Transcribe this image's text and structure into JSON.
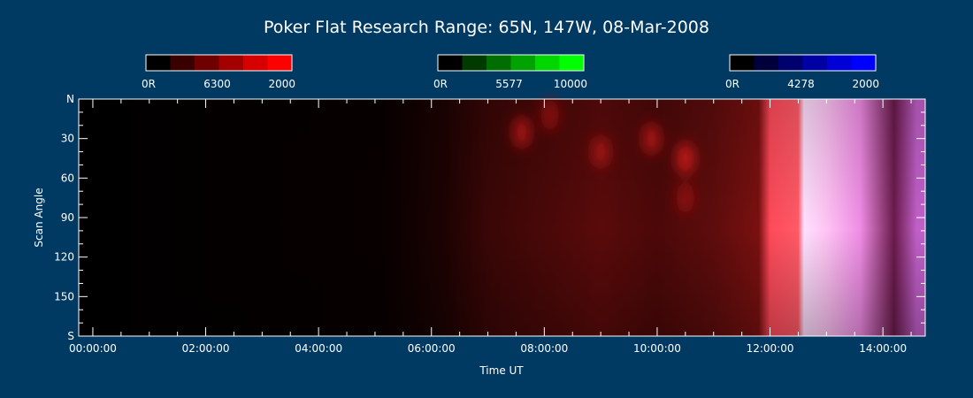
{
  "chart_data": {
    "type": "heatmap",
    "title": "Poker Flat Research Range: 65N, 147W, 08-Mar-2008",
    "xlabel": "Time UT",
    "ylabel": "Scan Angle",
    "x_ticks": [
      "00:00:00",
      "02:00:00",
      "04:00:00",
      "06:00:00",
      "08:00:00",
      "10:00:00",
      "12:00:00",
      "14:00:00"
    ],
    "x_tick_hours": [
      0,
      2,
      4,
      6,
      8,
      10,
      12,
      14
    ],
    "xlim_hours": [
      -0.25,
      14.75
    ],
    "y_ticks": [
      "N",
      "30",
      "60",
      "90",
      "120",
      "150",
      "S"
    ],
    "y_tick_values": [
      0,
      30,
      60,
      90,
      120,
      150,
      180
    ],
    "ylim": [
      0,
      180
    ],
    "colorbars": [
      {
        "wavelength": "6300",
        "min_label": "0R",
        "max_label": "2000",
        "colors": [
          "#000000",
          "#3a0000",
          "#6e0000",
          "#a30000",
          "#d70000",
          "#ff0000"
        ]
      },
      {
        "wavelength": "5577",
        "min_label": "0R",
        "max_label": "10000",
        "colors": [
          "#000000",
          "#003a00",
          "#006e00",
          "#00a300",
          "#00d700",
          "#00ff00"
        ]
      },
      {
        "wavelength": "4278",
        "min_label": "0R",
        "max_label": "2000",
        "colors": [
          "#000000",
          "#00003a",
          "#00006e",
          "#0000a3",
          "#0000d7",
          "#0000ff"
        ]
      }
    ],
    "intensity_profile": [
      {
        "hour": 5.1,
        "color": "#080000"
      },
      {
        "hour": 6.2,
        "color": "#1c0202"
      },
      {
        "hour": 7.0,
        "color": "#3a0606"
      },
      {
        "hour": 8.0,
        "color": "#4a0808"
      },
      {
        "hour": 9.0,
        "color": "#5a0a0a"
      },
      {
        "hour": 10.0,
        "color": "#4c0808"
      },
      {
        "hour": 11.0,
        "color": "#5e0c0c"
      },
      {
        "hour": 11.8,
        "color": "#7a1010"
      },
      {
        "hour": 12.0,
        "color": "#ff4a5a"
      },
      {
        "hour": 12.5,
        "color": "#ff5a66"
      },
      {
        "hour": 12.6,
        "color": "#ffe0ff"
      },
      {
        "hour": 13.0,
        "color": "#ffc4f4"
      },
      {
        "hour": 13.6,
        "color": "#f08ce6"
      },
      {
        "hour": 14.2,
        "color": "#6a1a4a"
      },
      {
        "hour": 14.6,
        "color": "#c060c8"
      }
    ],
    "blobs": [
      {
        "hour": 7.6,
        "scan": 25,
        "color": "#c81818"
      },
      {
        "hour": 8.1,
        "scan": 12,
        "color": "#a81010"
      },
      {
        "hour": 9.0,
        "scan": 40,
        "color": "#b81414"
      },
      {
        "hour": 9.9,
        "scan": 30,
        "color": "#c81818"
      },
      {
        "hour": 10.5,
        "scan": 45,
        "color": "#e42020"
      },
      {
        "hour": 10.5,
        "scan": 75,
        "color": "#9a1010"
      }
    ]
  }
}
